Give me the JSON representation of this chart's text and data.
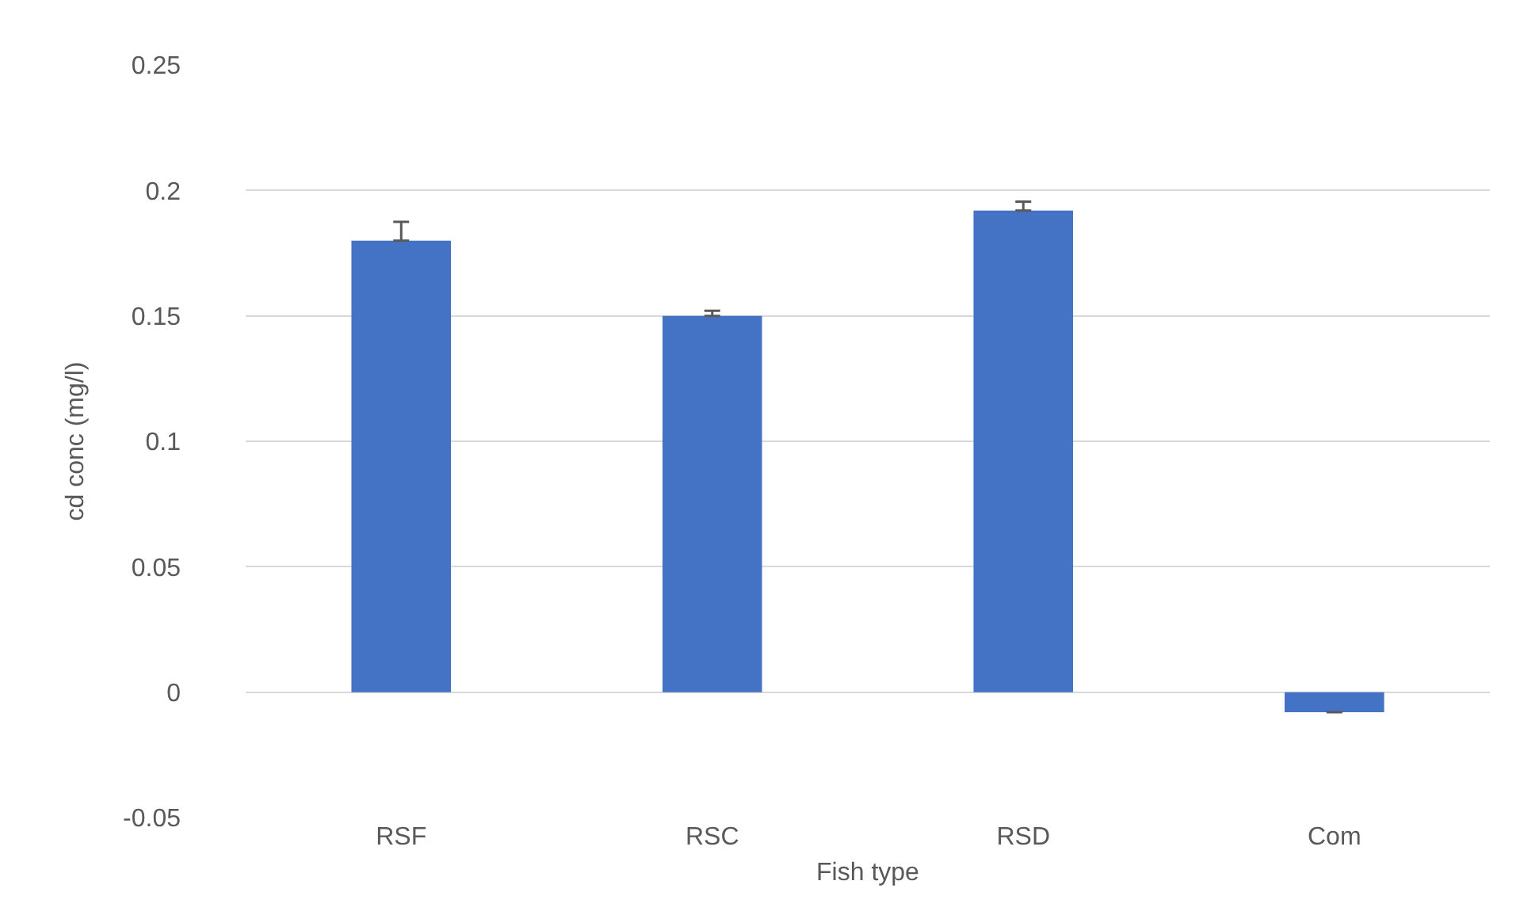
{
  "chart_data": {
    "type": "bar",
    "xlabel": "Fish type",
    "ylabel": "cd conc (mg/l)",
    "categories": [
      "RSF",
      "RSC",
      "RSD",
      "Com"
    ],
    "values": [
      0.18,
      0.15,
      0.192,
      -0.008
    ],
    "errors": [
      [
        0.18,
        0.1875
      ],
      [
        0.15,
        0.152
      ],
      [
        0.192,
        0.1955
      ],
      [
        -0.008,
        -0.008
      ]
    ],
    "color": "#4472c4",
    "ylim": [
      -0.05,
      0.25
    ],
    "yticks": [
      -0.05,
      0,
      0.05,
      0.1,
      0.15,
      0.2,
      0.25
    ],
    "grid": "y",
    "legend": false
  }
}
